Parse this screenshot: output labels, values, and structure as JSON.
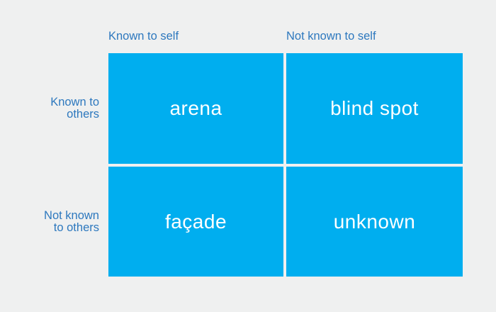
{
  "diagram": {
    "type": "johari-window-matrix",
    "column_headers": [
      "Known to self",
      "Not known to self"
    ],
    "row_headers": [
      "Known to\nothers",
      "Not known\nto others"
    ],
    "quadrants": [
      {
        "row": "Known to others",
        "column": "Known to self",
        "label": "arena"
      },
      {
        "row": "Known to others",
        "column": "Not known to self",
        "label": "blind spot"
      },
      {
        "row": "Not known to others",
        "column": "Known to self",
        "label": "façade"
      },
      {
        "row": "Not known to others",
        "column": "Not known to self",
        "label": "unknown"
      }
    ],
    "colors": {
      "background": "#eff0f0",
      "quadrant_fill": "#00aeef",
      "quadrant_text": "#ffffff",
      "header_text": "#2d78be"
    }
  }
}
